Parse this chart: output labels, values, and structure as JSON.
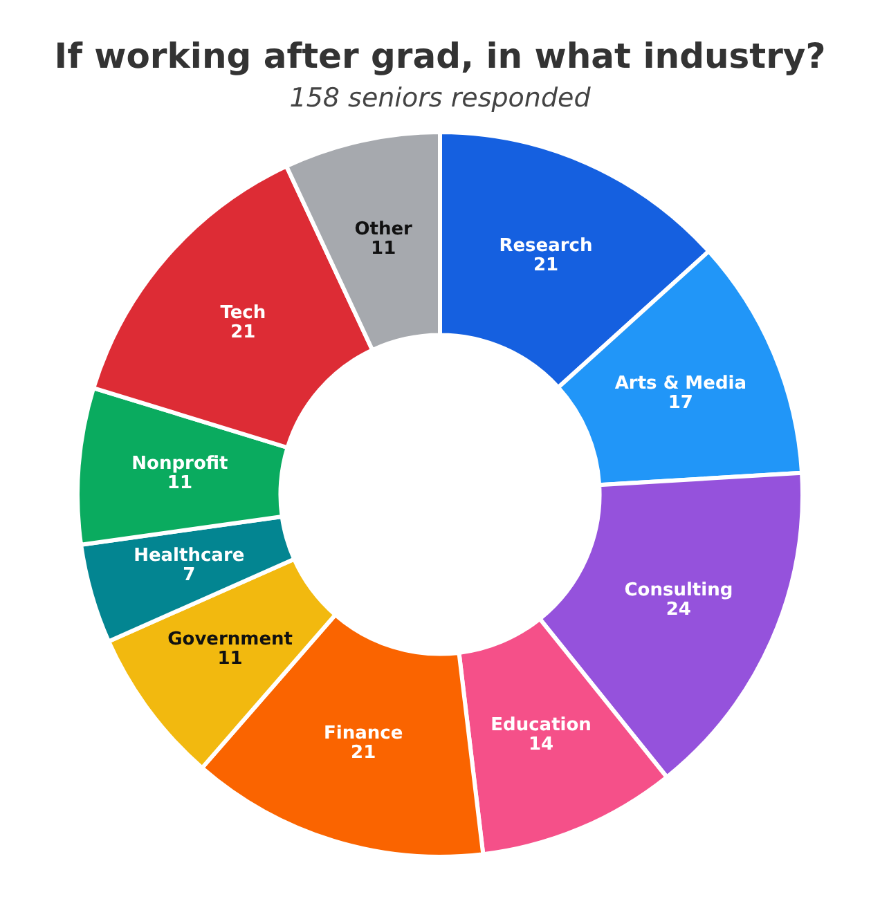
{
  "chart_data": {
    "type": "donut",
    "title": "If working after grad, in what industry?",
    "subtitle": "158 seniors responded",
    "categories": [
      "Research",
      "Arts & Media",
      "Consulting",
      "Education",
      "Finance",
      "Government",
      "Healthcare",
      "Nonprofit",
      "Tech",
      "Other"
    ],
    "values": [
      21,
      17,
      24,
      14,
      21,
      11,
      7,
      11,
      21,
      11
    ],
    "colors": [
      "#1560e0",
      "#2196f8",
      "#9552dc",
      "#f55089",
      "#fa6400",
      "#f2b90f",
      "#038591",
      "#0aab5f",
      "#dd2c35",
      "#a6a9ae"
    ],
    "data_labels": true,
    "legend": false
  }
}
